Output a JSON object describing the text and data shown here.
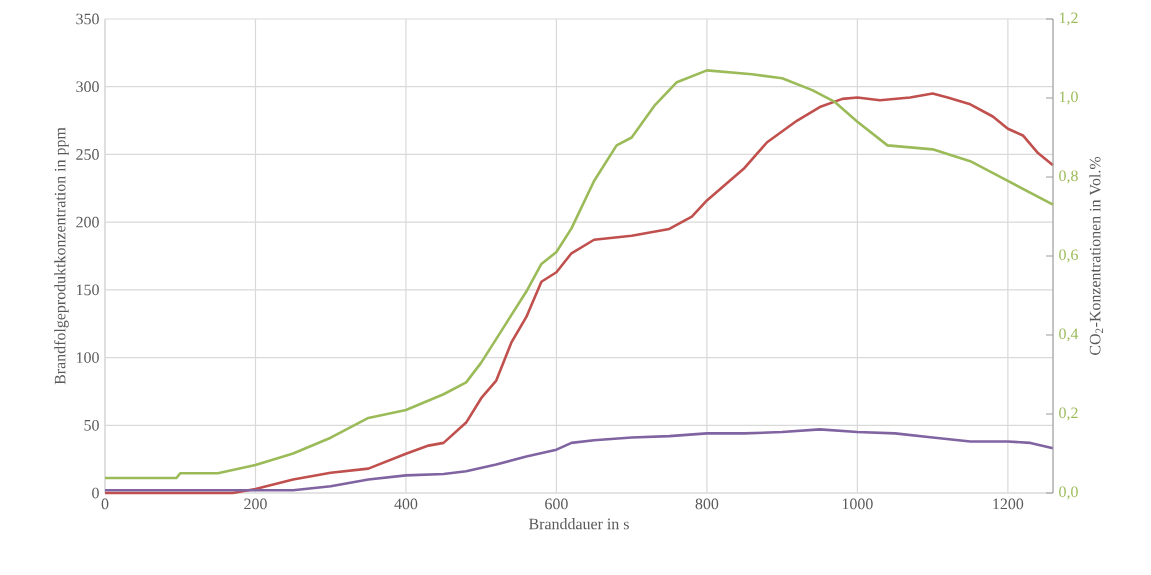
{
  "chart_data": {
    "type": "line",
    "xlabel": "Branddauer in s",
    "ylabel": "Brandfolgeproduktkonzentration  in ppm",
    "y2label": "CO$_{2}$-Konzentrationen in Vol.%",
    "xlim": [
      0,
      1260
    ],
    "xticks": [
      0,
      200,
      400,
      600,
      800,
      1000,
      1200
    ],
    "ylim": [
      0,
      350
    ],
    "yticks": [
      0,
      50,
      100,
      150,
      200,
      250,
      300,
      350
    ],
    "y2lim": [
      0,
      1.2
    ],
    "y2ticks": [
      {
        "value": 0,
        "label": "0,0"
      },
      {
        "value": 0.2,
        "label": "0,2"
      },
      {
        "value": 0.4,
        "label": "0,4"
      },
      {
        "value": 0.6,
        "label": "0,6"
      },
      {
        "value": 0.8,
        "label": "0,8"
      },
      {
        "value": 1.0,
        "label": "1,0"
      },
      {
        "value": 1.2,
        "label": "1,2"
      }
    ],
    "grid": true,
    "series": [
      {
        "color": "#c0504d",
        "x": [
          0,
          170,
          200,
          250,
          300,
          350,
          400,
          430,
          450,
          480,
          500,
          520,
          540,
          560,
          580,
          600,
          620,
          650,
          700,
          750,
          780,
          800,
          850,
          880,
          920,
          950,
          980,
          1000,
          1030,
          1070,
          1100,
          1120,
          1150,
          1180,
          1200,
          1220,
          1240,
          1260
        ],
        "values": [
          0,
          0,
          3,
          10,
          15,
          18,
          29,
          35,
          37,
          52,
          70,
          83,
          111,
          130,
          156,
          163,
          177,
          187,
          190,
          195,
          204,
          216,
          240,
          259,
          275,
          285,
          291,
          292,
          290,
          292,
          295,
          292,
          287,
          278,
          269,
          264,
          251,
          242
        ]
      },
      {
        "color": "#8064a2",
        "x": [
          0,
          250,
          300,
          350,
          400,
          450,
          480,
          520,
          560,
          600,
          620,
          650,
          700,
          750,
          800,
          850,
          900,
          950,
          1000,
          1050,
          1100,
          1150,
          1200,
          1230,
          1260
        ],
        "values": [
          2,
          2,
          5,
          10,
          13,
          14,
          16,
          21,
          27,
          32,
          37,
          39,
          41,
          42,
          44,
          44,
          45,
          47,
          45,
          44,
          41,
          38,
          38,
          37,
          33
        ]
      },
      {
        "color": "#9bbb59",
        "axis": "y2",
        "x": [
          0,
          95,
          100,
          150,
          200,
          250,
          300,
          350,
          400,
          450,
          480,
          500,
          530,
          560,
          580,
          600,
          620,
          650,
          680,
          700,
          730,
          760,
          800,
          860,
          900,
          940,
          970,
          1000,
          1040,
          1100,
          1150,
          1200,
          1260
        ],
        "values": [
          0.038,
          0.038,
          0.05,
          0.05,
          0.071,
          0.1,
          0.14,
          0.19,
          0.21,
          0.25,
          0.28,
          0.33,
          0.42,
          0.51,
          0.58,
          0.61,
          0.67,
          0.79,
          0.88,
          0.9,
          0.98,
          1.04,
          1.07,
          1.06,
          1.05,
          1.02,
          0.99,
          0.94,
          0.88,
          0.87,
          0.84,
          0.79,
          0.73
        ]
      }
    ]
  }
}
